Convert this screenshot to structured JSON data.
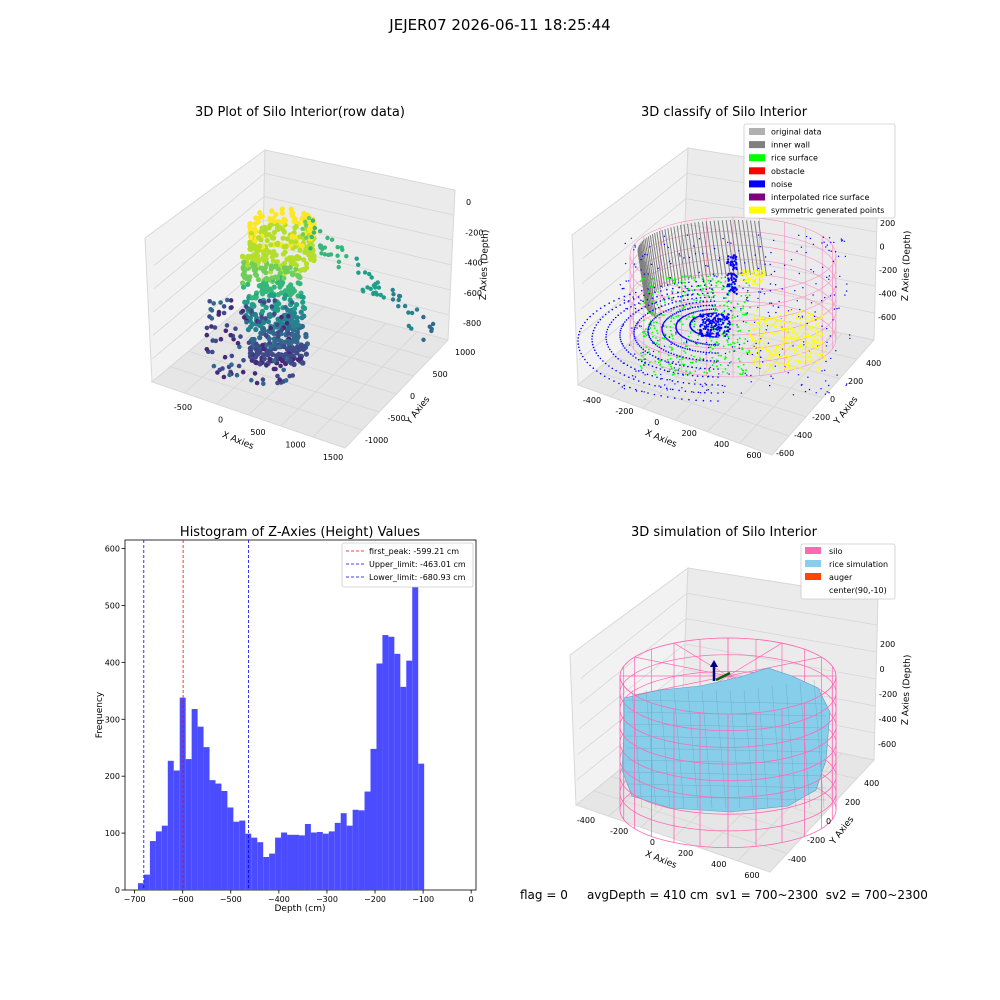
{
  "suptitle": "JEJER07 2026-06-11 18:25:44",
  "footer": {
    "flag": "flag = 0",
    "avg": "avgDepth = 410 cm",
    "sv1": "sv1 = 700~2300",
    "sv2": "sv2 = 700~2300"
  },
  "chart_data": [
    {
      "type": "scatter",
      "title": "3D Plot of Silo Interior(row data)",
      "xlabel": "X Axies",
      "ylabel": "Y Axies",
      "zlabel": "Z Axies (Depth)",
      "x_ticks": [
        "-500",
        "0",
        "500",
        "1000",
        "1500"
      ],
      "y_ticks": [
        "-1000",
        "-500",
        "0",
        "500",
        "1000"
      ],
      "z_ticks": [
        "0",
        "-200",
        "-400",
        "-600",
        "-800"
      ],
      "colormap": "viridis"
    },
    {
      "type": "scatter",
      "title": "3D classify of Silo Interior",
      "xlabel": "X Axies",
      "ylabel": "Y Axies",
      "zlabel": "Z Axies (Depth)",
      "x_ticks": [
        "-400",
        "-200",
        "0",
        "200",
        "400",
        "600"
      ],
      "y_ticks": [
        "-600",
        "-400",
        "-200",
        "0",
        "200",
        "400"
      ],
      "z_ticks": [
        "200",
        "0",
        "-200",
        "-400",
        "-600"
      ],
      "legend": [
        {
          "label": "original data",
          "color": "#b0b0b0"
        },
        {
          "label": "inner wall",
          "color": "#808080"
        },
        {
          "label": "rice surface",
          "color": "#00ff00"
        },
        {
          "label": "obstacle",
          "color": "#ff0000"
        },
        {
          "label": "noise",
          "color": "#0000ff"
        },
        {
          "label": "interpolated rice surface",
          "color": "#800080"
        },
        {
          "label": "symmetric generated points",
          "color": "#ffff00"
        }
      ]
    },
    {
      "type": "bar",
      "title": "Histogram of Z-Axies (Height) Values",
      "xlabel": "Depth (cm)",
      "ylabel": "Frequency",
      "xlim": [
        -720,
        10
      ],
      "ylim": [
        0,
        615
      ],
      "x_ticks": [
        -700,
        -600,
        -500,
        -400,
        -300,
        -200,
        -100,
        0
      ],
      "y_ticks": [
        0,
        100,
        200,
        300,
        400,
        500,
        600
      ],
      "bar_color": "#4b4bff",
      "bin_start": -693,
      "bin_width": 12.4,
      "values": [
        12,
        27,
        86,
        103,
        113,
        227,
        210,
        338,
        230,
        318,
        287,
        251,
        193,
        187,
        174,
        145,
        120,
        122,
        99,
        92,
        84,
        58,
        64,
        92,
        101,
        97,
        97,
        96,
        116,
        101,
        102,
        99,
        103,
        118,
        135,
        113,
        141,
        140,
        173,
        248,
        398,
        448,
        445,
        415,
        357,
        403,
        578,
        222
      ],
      "vlines": [
        {
          "x": -599.21,
          "color": "#ff0000",
          "label": "first_peak: -599.21 cm"
        },
        {
          "x": -463.01,
          "color": "#0000ff",
          "label": "Upper_limit: -463.01 cm"
        },
        {
          "x": -680.93,
          "color": "#0000ff",
          "label": "Lower_limit: -680.93 cm"
        }
      ],
      "legend_position": "top-right"
    },
    {
      "type": "area",
      "title": "3D simulation of Silo Interior",
      "xlabel": "X Axies",
      "ylabel": "Y Axies",
      "zlabel": "Z Axies (Depth)",
      "x_ticks": [
        "-400",
        "-200",
        "0",
        "200",
        "400",
        "600"
      ],
      "y_ticks": [
        "-400",
        "-200",
        "0",
        "200",
        "400"
      ],
      "z_ticks": [
        "200",
        "0",
        "-200",
        "-400",
        "-600"
      ],
      "legend": [
        {
          "label": "silo",
          "color": "#ff69b4"
        },
        {
          "label": "rice simulation",
          "color": "#87ceeb"
        },
        {
          "label": "auger",
          "color": "#ff4500"
        },
        {
          "label": "center(90,-10)",
          "color": ""
        }
      ]
    }
  ]
}
